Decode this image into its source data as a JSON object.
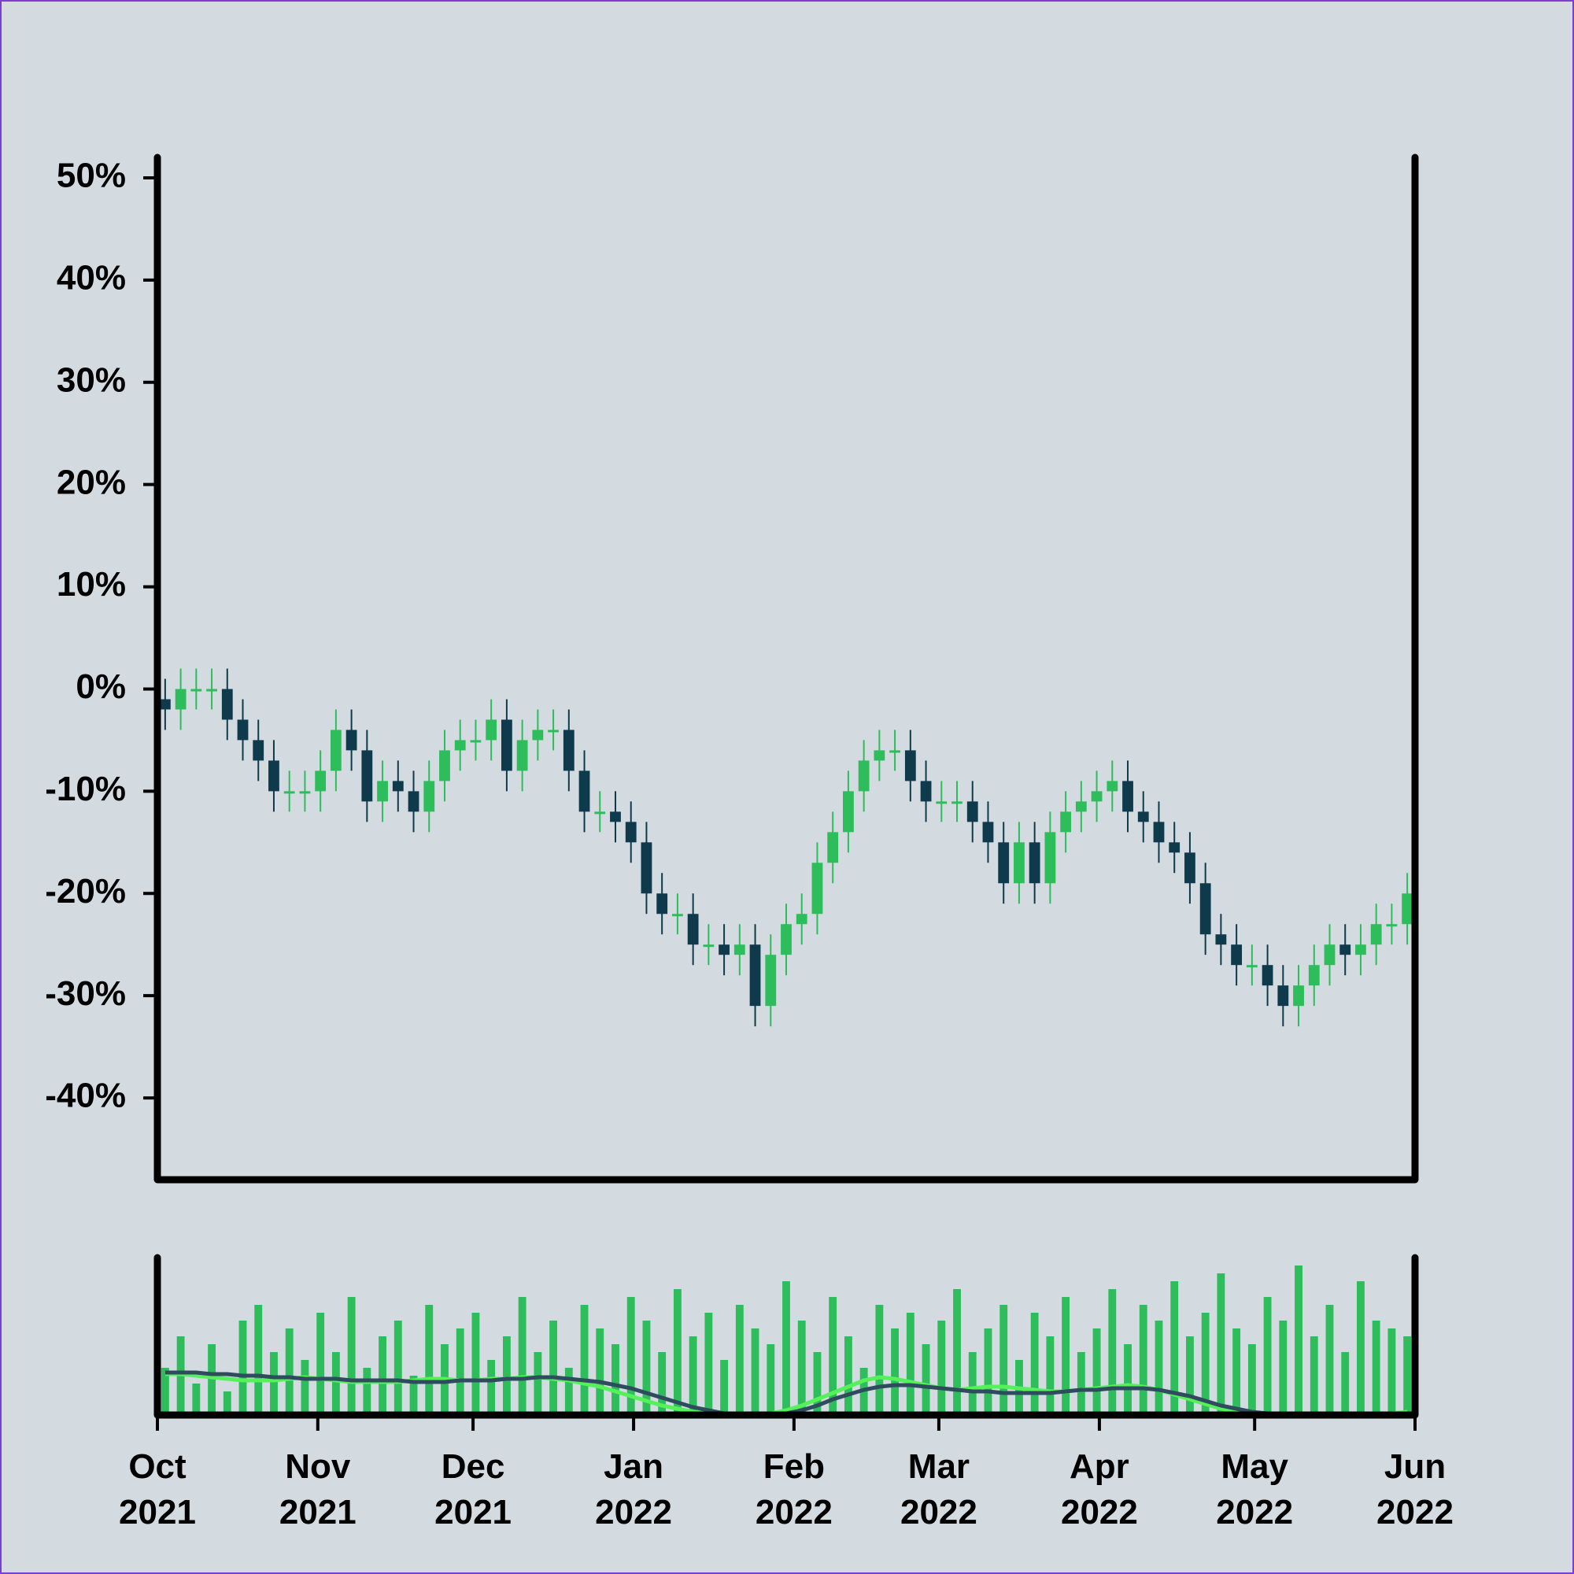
{
  "chart_data": [
    {
      "type": "candlestick",
      "up_color": "#2dbd5b",
      "down_color": "#0f3a4c",
      "xlim": [
        0,
        81
      ],
      "ylim": [
        -48,
        52
      ],
      "yticks": [
        {
          "value": 50,
          "label": "50%"
        },
        {
          "value": 40,
          "label": "40%"
        },
        {
          "value": 30,
          "label": "30%"
        },
        {
          "value": 20,
          "label": "20%"
        },
        {
          "value": 10,
          "label": "10%"
        },
        {
          "value": 0,
          "label": "0%"
        },
        {
          "value": -10,
          "label": "-10%"
        },
        {
          "value": -20,
          "label": "-20%"
        },
        {
          "value": -30,
          "label": "-30%"
        },
        {
          "value": -40,
          "label": "-40%"
        }
      ],
      "open": [
        -1,
        -2,
        0,
        0,
        0,
        -3,
        -5,
        -7,
        -10,
        -10,
        -10,
        -8,
        -4,
        -6,
        -11,
        -9,
        -10,
        -12,
        -9,
        -6,
        -5,
        -5,
        -3,
        -8,
        -5,
        -4,
        -4,
        -8,
        -12,
        -12,
        -13,
        -15,
        -20,
        -22,
        -22,
        -25,
        -25,
        -26,
        -25,
        -31,
        -26,
        -23,
        -22,
        -17,
        -14,
        -10,
        -7,
        -6,
        -6,
        -9,
        -11,
        -11,
        -11,
        -13,
        -15,
        -19,
        -15,
        -19,
        -14,
        -12,
        -11,
        -10,
        -9,
        -12,
        -13,
        -15,
        -16,
        -19,
        -24,
        -25,
        -27,
        -27,
        -29,
        -31,
        -29,
        -27,
        -25,
        -26,
        -25,
        -23,
        -23
      ],
      "high": [
        1,
        2,
        2,
        2,
        2,
        -1,
        -3,
        -5,
        -8,
        -8,
        -6,
        -2,
        -2,
        -4,
        -7,
        -7,
        -8,
        -7,
        -4,
        -3,
        -3,
        -1,
        -1,
        -3,
        -2,
        -2,
        -2,
        -6,
        -10,
        -10,
        -11,
        -13,
        -18,
        -20,
        -20,
        -23,
        -23,
        -23,
        -23,
        -24,
        -21,
        -20,
        -15,
        -12,
        -8,
        -5,
        -4,
        -4,
        -4,
        -7,
        -9,
        -9,
        -9,
        -11,
        -13,
        -13,
        -13,
        -12,
        -10,
        -9,
        -8,
        -7,
        -7,
        -10,
        -11,
        -13,
        -14,
        -17,
        -22,
        -23,
        -25,
        -25,
        -27,
        -27,
        -25,
        -23,
        -23,
        -23,
        -21,
        -21,
        -18
      ],
      "low": [
        -4,
        -4,
        -2,
        -2,
        -5,
        -7,
        -9,
        -12,
        -12,
        -12,
        -12,
        -10,
        -8,
        -13,
        -13,
        -12,
        -14,
        -14,
        -11,
        -8,
        -7,
        -7,
        -10,
        -10,
        -7,
        -6,
        -10,
        -14,
        -14,
        -15,
        -17,
        -22,
        -24,
        -24,
        -27,
        -27,
        -28,
        -28,
        -33,
        -33,
        -28,
        -25,
        -24,
        -19,
        -16,
        -12,
        -9,
        -8,
        -11,
        -13,
        -13,
        -13,
        -15,
        -17,
        -21,
        -21,
        -21,
        -21,
        -16,
        -14,
        -13,
        -12,
        -14,
        -15,
        -17,
        -18,
        -21,
        -26,
        -27,
        -29,
        -29,
        -31,
        -33,
        -33,
        -31,
        -29,
        -28,
        -28,
        -27,
        -25,
        -25
      ],
      "close": [
        -2,
        0,
        0,
        0,
        -3,
        -5,
        -7,
        -10,
        -10,
        -10,
        -8,
        -4,
        -6,
        -11,
        -9,
        -10,
        -12,
        -9,
        -6,
        -5,
        -5,
        -3,
        -8,
        -5,
        -4,
        -4,
        -8,
        -12,
        -12,
        -13,
        -15,
        -20,
        -22,
        -22,
        -25,
        -25,
        -26,
        -25,
        -31,
        -26,
        -23,
        -22,
        -17,
        -14,
        -10,
        -7,
        -6,
        -6,
        -9,
        -11,
        -11,
        -11,
        -13,
        -15,
        -19,
        -15,
        -19,
        -14,
        -12,
        -11,
        -10,
        -9,
        -12,
        -13,
        -15,
        -16,
        -19,
        -24,
        -25,
        -27,
        -27,
        -29,
        -31,
        -29,
        -27,
        -25,
        -26,
        -25,
        -23,
        -23,
        -20
      ]
    },
    {
      "type": "volume",
      "color": "#2dbd5b",
      "xlim": [
        0,
        81
      ],
      "ylim": [
        0,
        100
      ],
      "xticks": [
        {
          "value": 0,
          "label": [
            "Oct",
            "2021"
          ]
        },
        {
          "value": 10.33,
          "label": [
            "Nov",
            "2021"
          ]
        },
        {
          "value": 20.33,
          "label": [
            "Dec",
            "2021"
          ]
        },
        {
          "value": 30.67,
          "label": [
            "Jan",
            "2022"
          ]
        },
        {
          "value": 41,
          "label": [
            "Feb",
            "2022"
          ]
        },
        {
          "value": 50.33,
          "label": [
            "Mar",
            "2022"
          ]
        },
        {
          "value": 60.67,
          "label": [
            "Apr",
            "2022"
          ]
        },
        {
          "value": 70.67,
          "label": [
            "May",
            "2022"
          ]
        },
        {
          "value": 81,
          "label": [
            "Jun",
            "2022"
          ]
        }
      ],
      "values": [
        30,
        50,
        20,
        45,
        15,
        60,
        70,
        40,
        55,
        35,
        65,
        40,
        75,
        30,
        50,
        60,
        25,
        70,
        45,
        55,
        65,
        35,
        50,
        75,
        40,
        60,
        30,
        70,
        55,
        45,
        75,
        60,
        40,
        80,
        50,
        65,
        35,
        70,
        55,
        45,
        85,
        60,
        40,
        75,
        50,
        30,
        70,
        55,
        65,
        45,
        60,
        80,
        40,
        55,
        70,
        35,
        65,
        50,
        75,
        40,
        55,
        80,
        45,
        70,
        60,
        85,
        50,
        65,
        90,
        55,
        45,
        75,
        60,
        95,
        50,
        70,
        40,
        85,
        60,
        55,
        50
      ],
      "lines": [
        {
          "color": "#55f05a",
          "values": [
            26,
            26,
            25,
            24,
            23,
            22,
            22,
            22,
            23,
            24,
            23,
            22,
            21,
            21,
            21,
            21,
            22,
            23,
            23,
            22,
            22,
            23,
            23,
            24,
            24,
            23,
            22,
            20,
            18,
            15,
            12,
            9,
            6,
            4,
            2,
            1,
            0,
            0,
            0,
            1,
            3,
            6,
            10,
            14,
            18,
            22,
            24,
            23,
            21,
            19,
            17,
            16,
            17,
            18,
            18,
            17,
            16,
            15,
            15,
            16,
            17,
            18,
            19,
            18,
            16,
            13,
            10,
            7,
            4,
            2,
            1,
            0,
            0,
            0,
            0,
            0,
            0,
            0,
            1,
            1,
            2
          ]
        },
        {
          "color": "#2f4b5e",
          "values": [
            27,
            27,
            27,
            26,
            26,
            25,
            25,
            24,
            24,
            23,
            23,
            23,
            22,
            22,
            22,
            22,
            21,
            21,
            21,
            22,
            22,
            22,
            23,
            23,
            24,
            24,
            23,
            22,
            21,
            19,
            17,
            14,
            11,
            8,
            5,
            3,
            1,
            0,
            0,
            0,
            1,
            3,
            6,
            10,
            13,
            16,
            18,
            19,
            19,
            18,
            17,
            16,
            15,
            15,
            14,
            14,
            14,
            14,
            15,
            16,
            16,
            17,
            17,
            17,
            16,
            14,
            12,
            9,
            6,
            4,
            2,
            1,
            0,
            0,
            0,
            0,
            0,
            0,
            0,
            0,
            1
          ]
        }
      ]
    }
  ]
}
